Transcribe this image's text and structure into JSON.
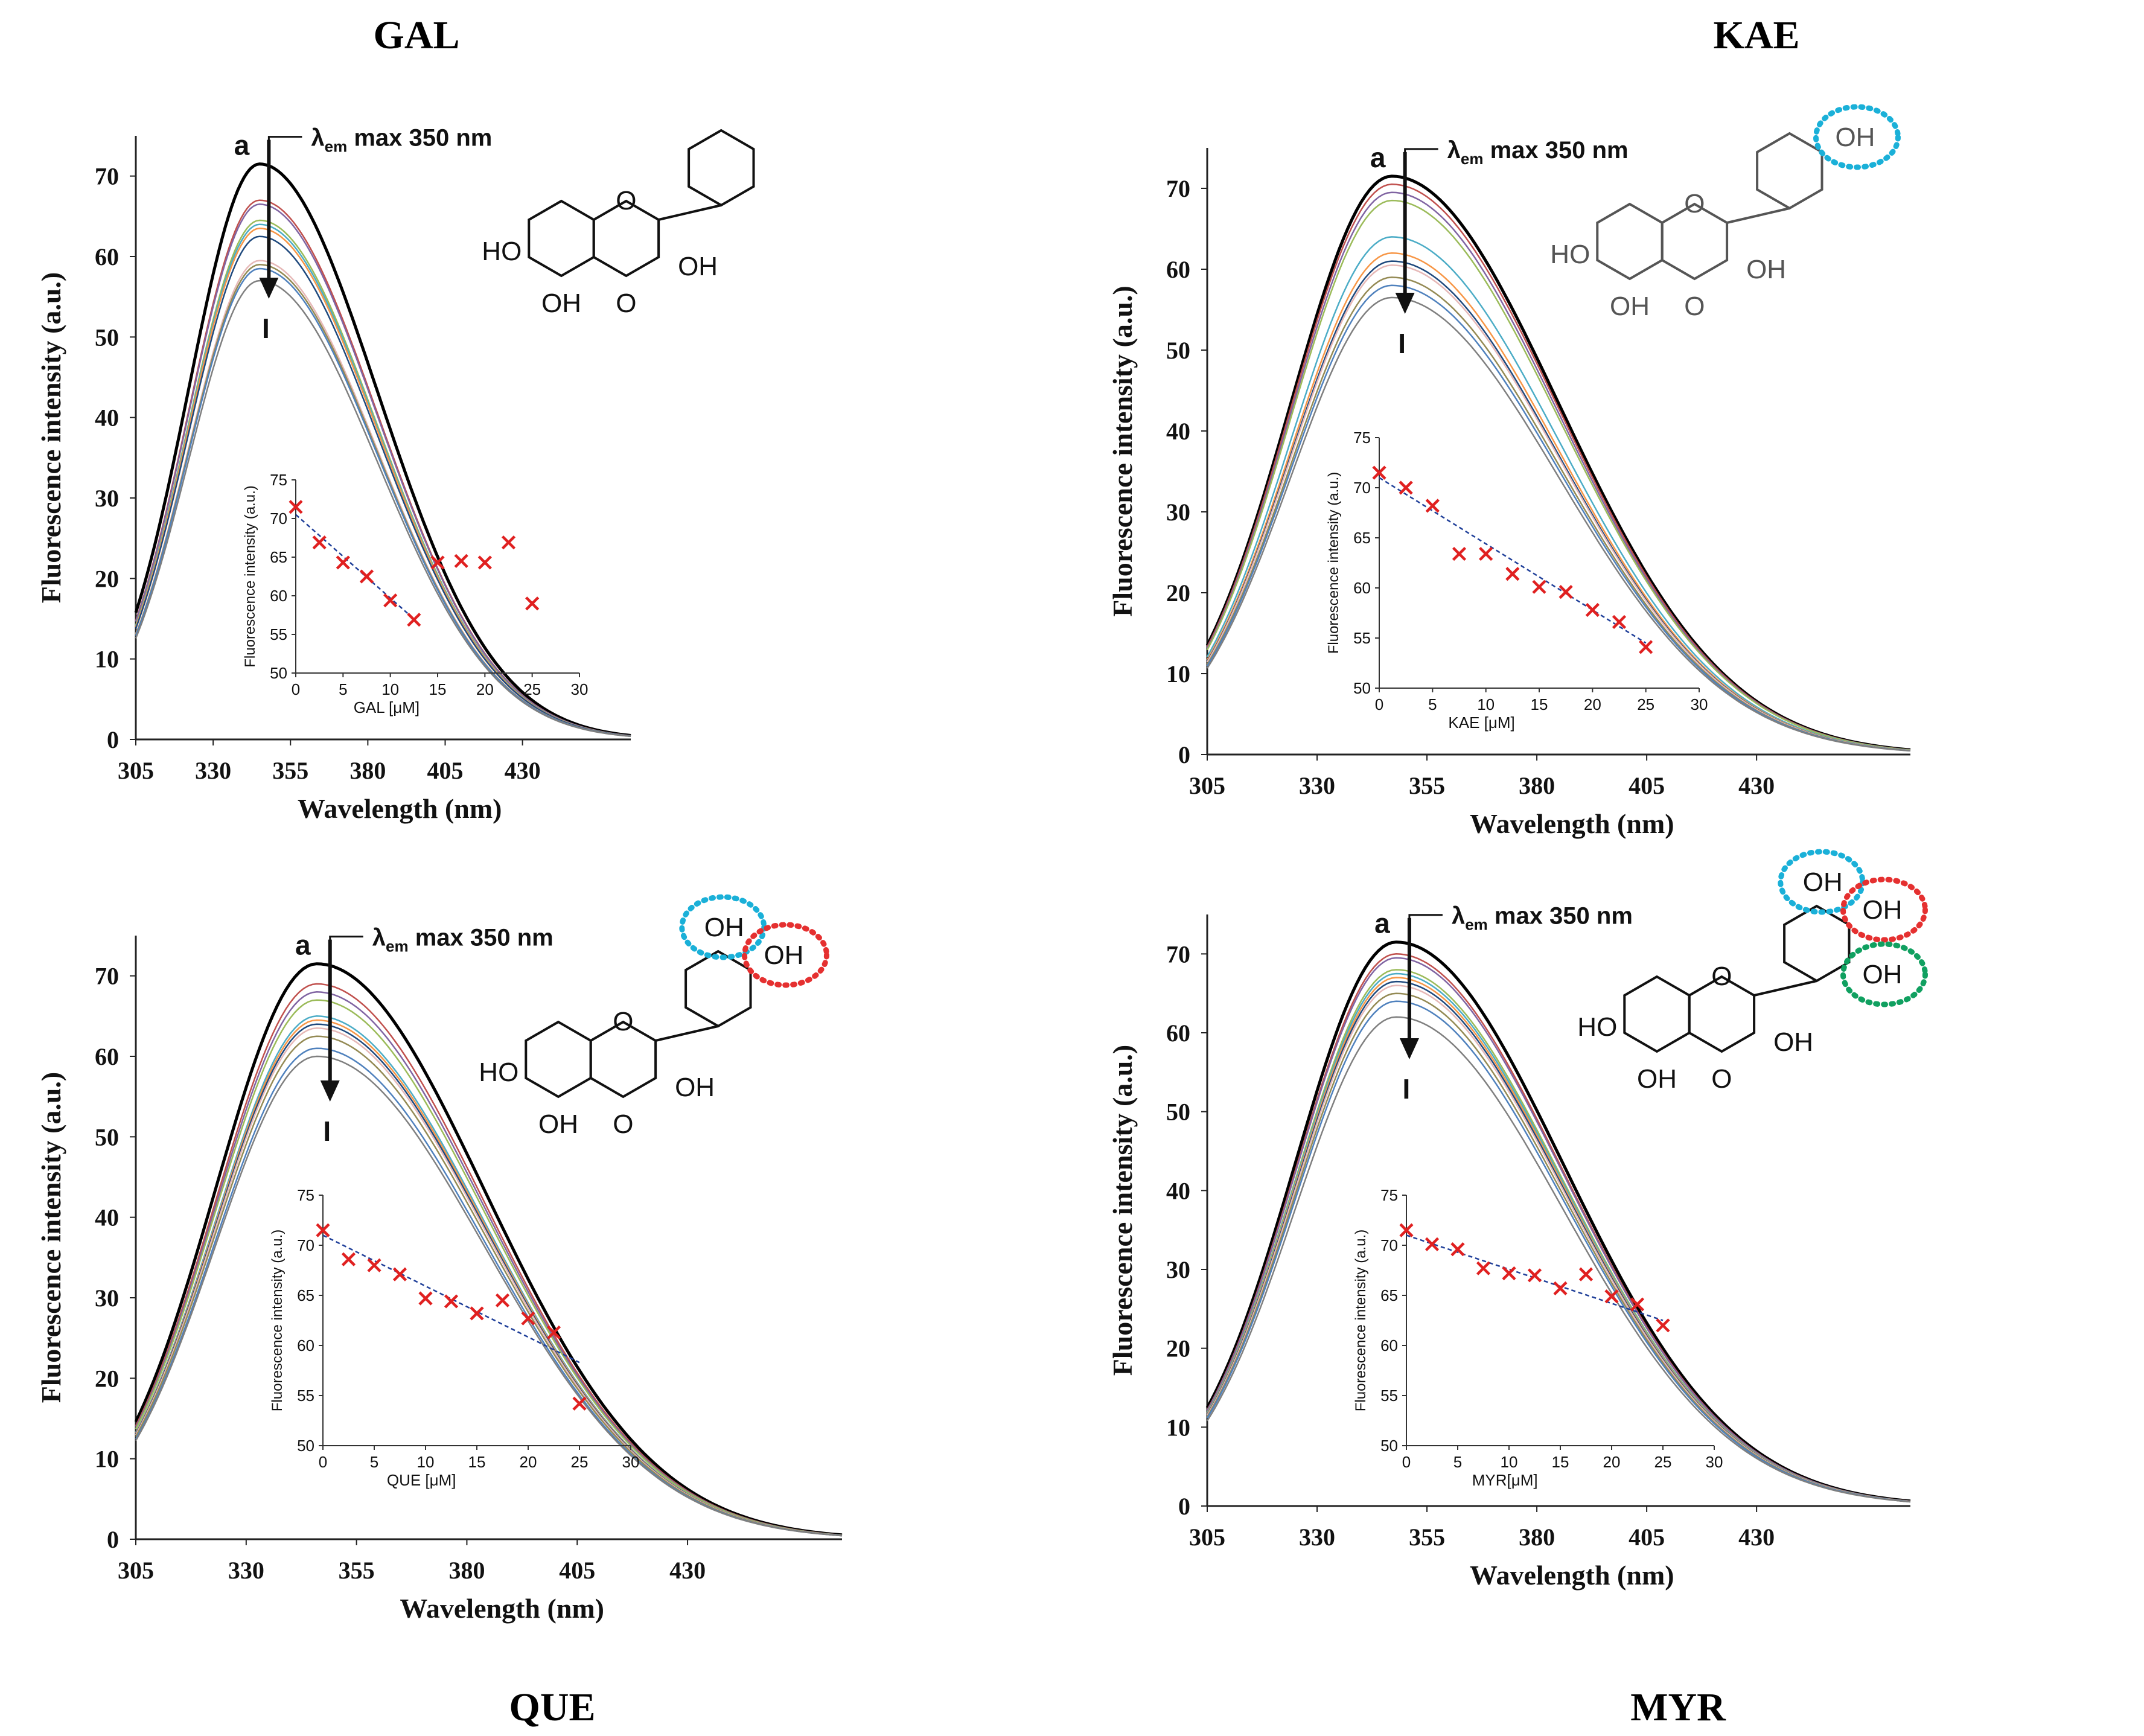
{
  "figure": {
    "panel_titles": {
      "GAL": "GAL",
      "KAE": "KAE",
      "QUE": "QUE",
      "MYR": "MYR"
    },
    "peak_label": "a",
    "end_label": "I",
    "annotation_prefix": "λ",
    "annotation_sub": "em",
    "annotation_suffix": " max 350 nm",
    "colors": {
      "curve_main": "#000000",
      "curves": [
        "#c0504d",
        "#8064a2",
        "#9bbb59",
        "#4bacc6",
        "#f79646",
        "#1f497d",
        "#e6b8b7",
        "#948a54",
        "#4f81bd",
        "#7f7f7f",
        "#ffc000"
      ],
      "marker": "#e02020",
      "trend": "#1f3f99",
      "circle_blue": "#1ab0d8",
      "circle_red": "#e53030",
      "circle_green": "#10a060"
    },
    "molecule_labels": {
      "HO": "HO",
      "OH": "OH",
      "O": "O"
    }
  },
  "chart_data": [
    {
      "type": "line",
      "id": "GAL",
      "title": "GAL",
      "xlabel": "Wavelength (nm)",
      "ylabel": "Fluorescence intensity  (a.u.)",
      "xlim": [
        305,
        465
      ],
      "ylim": [
        0,
        75
      ],
      "xticks": [
        305,
        330,
        355,
        380,
        405,
        430
      ],
      "yticks": [
        0,
        10,
        20,
        30,
        40,
        50,
        60,
        70
      ],
      "peak_wavelength": 345,
      "curve_peaks": [
        71.5,
        67,
        66.5,
        64.5,
        64,
        63.5,
        62.5,
        59.5,
        59,
        58.5,
        57
      ],
      "inset": {
        "type": "scatter",
        "xlabel": "GAL [μM]",
        "ylabel": "Fluorescence intensity  (a.u.)",
        "xlim": [
          0,
          30
        ],
        "ylim": [
          50,
          75
        ],
        "xticks": [
          0,
          5,
          10,
          15,
          20,
          25,
          30
        ],
        "yticks": [
          50,
          55,
          60,
          65,
          70,
          75
        ],
        "x": [
          0,
          2.5,
          5,
          7.5,
          10,
          12.5,
          15,
          17.5,
          20,
          22.5,
          25
        ],
        "y": [
          71.5,
          66.9,
          64.3,
          62.5,
          59.4,
          56.9,
          64.3,
          64.5,
          64.3,
          66.9,
          59
        ],
        "trend": {
          "x": [
            0,
            12.5
          ],
          "y": [
            70.5,
            57
          ]
        }
      }
    },
    {
      "type": "line",
      "id": "KAE",
      "title": "KAE",
      "xlabel": "Wavelength (nm)",
      "ylabel": "Fluorescence intensity  (a.u.)",
      "xlim": [
        305,
        465
      ],
      "ylim": [
        0,
        75
      ],
      "xticks": [
        305,
        330,
        355,
        380,
        405,
        430
      ],
      "yticks": [
        0,
        10,
        20,
        30,
        40,
        50,
        60,
        70
      ],
      "peak_wavelength": 347,
      "curve_peaks": [
        71.5,
        70.5,
        69.5,
        68.5,
        64,
        62,
        61,
        60.5,
        59,
        58,
        56.5
      ],
      "inset": {
        "type": "scatter",
        "xlabel": "KAE [μM]",
        "ylabel": "Fluorescence intensity  (a.u.)",
        "xlim": [
          0,
          30
        ],
        "ylim": [
          50,
          75
        ],
        "xticks": [
          0,
          5,
          10,
          15,
          20,
          25,
          30
        ],
        "yticks": [
          50,
          55,
          60,
          65,
          70,
          75
        ],
        "x": [
          0,
          2.5,
          5,
          7.5,
          10,
          12.5,
          15,
          17.5,
          20,
          22.5,
          25
        ],
        "y": [
          71.5,
          70,
          68.2,
          63.4,
          63.4,
          61.4,
          60.1,
          59.6,
          57.8,
          56.6,
          54.1
        ],
        "trend": {
          "x": [
            0,
            25
          ],
          "y": [
            71,
            54.5
          ]
        }
      }
    },
    {
      "type": "line",
      "id": "QUE",
      "title": "QUE",
      "xlabel": "Wavelength (nm)",
      "ylabel": "Fluorescence intensity  (a.u.)",
      "xlim": [
        305,
        465
      ],
      "ylim": [
        0,
        75
      ],
      "xticks": [
        305,
        330,
        355,
        380,
        405,
        430
      ],
      "yticks": [
        0,
        10,
        20,
        30,
        40,
        50,
        60,
        70
      ],
      "peak_wavelength": 346,
      "curve_peaks": [
        71.5,
        69,
        68,
        67,
        65,
        64.5,
        64,
        63.5,
        62.5,
        61,
        60
      ],
      "inset": {
        "type": "scatter",
        "xlabel": "QUE [μM]",
        "ylabel": "Fluorescence intensity  (a.u.)",
        "xlim": [
          0,
          30
        ],
        "ylim": [
          50,
          75
        ],
        "xticks": [
          0,
          5,
          10,
          15,
          20,
          25,
          30
        ],
        "yticks": [
          50,
          55,
          60,
          65,
          70,
          75
        ],
        "x": [
          0,
          2.5,
          5,
          7.5,
          10,
          12.5,
          15,
          17.5,
          20,
          22.5,
          25
        ],
        "y": [
          71.5,
          68.6,
          68,
          67.1,
          64.7,
          64.4,
          63.2,
          64.5,
          62.7,
          61.3,
          54.2
        ],
        "trend": {
          "x": [
            0,
            25
          ],
          "y": [
            71,
            58.3
          ]
        }
      }
    },
    {
      "type": "line",
      "id": "MYR",
      "title": "MYR",
      "xlabel": "Wavelength (nm)",
      "ylabel": "Fluorescence intensity  (a.u.)",
      "xlim": [
        305,
        465
      ],
      "ylim": [
        0,
        75
      ],
      "xticks": [
        305,
        330,
        355,
        380,
        405,
        430
      ],
      "yticks": [
        0,
        10,
        20,
        30,
        40,
        50,
        60,
        70
      ],
      "peak_wavelength": 348,
      "curve_peaks": [
        71.5,
        70,
        69.5,
        68,
        67.5,
        67,
        66.5,
        66,
        65,
        64,
        62
      ],
      "inset": {
        "type": "scatter",
        "xlabel": "MYR[μM]",
        "ylabel": "Fluorescence intensity  (a.u.)",
        "xlim": [
          0,
          30
        ],
        "ylim": [
          50,
          75
        ],
        "xticks": [
          0,
          5,
          10,
          15,
          20,
          25,
          30
        ],
        "yticks": [
          50,
          55,
          60,
          65,
          70,
          75
        ],
        "x": [
          0,
          2.5,
          5,
          7.5,
          10,
          12.5,
          15,
          17.5,
          20,
          22.5,
          25
        ],
        "y": [
          71.5,
          70.1,
          69.6,
          67.7,
          67.2,
          67,
          65.7,
          67.1,
          64.9,
          64.1,
          62
        ],
        "trend": {
          "x": [
            0,
            25
          ],
          "y": [
            71,
            62.5
          ]
        }
      }
    }
  ]
}
